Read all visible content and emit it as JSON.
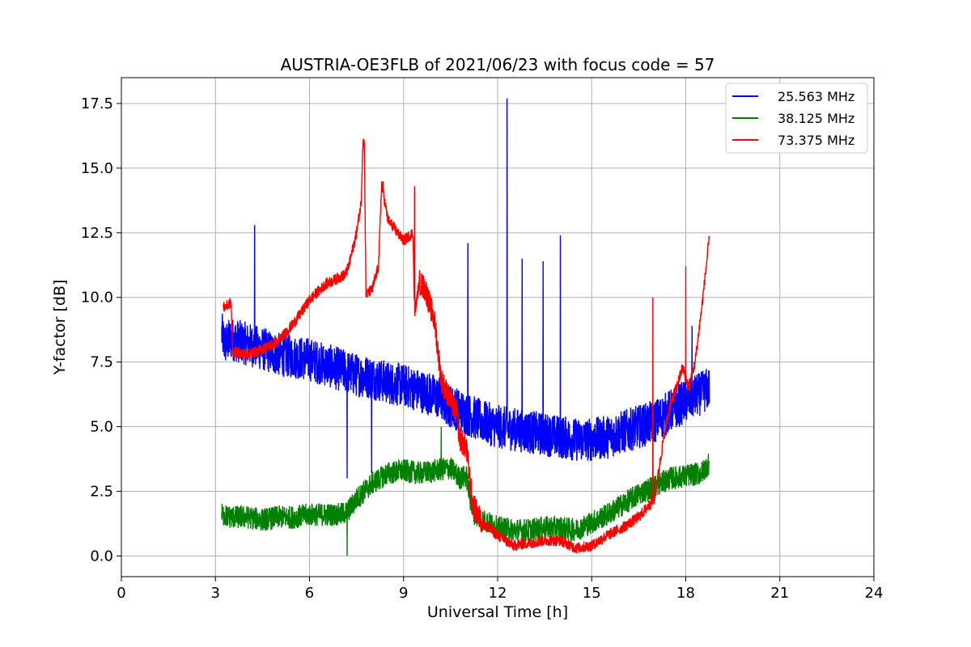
{
  "chart_data": {
    "type": "line",
    "title": "AUSTRIA-OE3FLB of 2021/06/23 with focus code = 57",
    "xlabel": "Universal Time [h]",
    "ylabel": "Y-factor [dB]",
    "xlim": [
      0,
      24
    ],
    "ylim": [
      -0.8,
      18.5
    ],
    "xticks": [
      0,
      3,
      6,
      9,
      12,
      15,
      18,
      21,
      24
    ],
    "xtick_labels": [
      "0",
      "3",
      "6",
      "9",
      "12",
      "15",
      "18",
      "21",
      "24"
    ],
    "yticks": [
      0,
      2.5,
      5,
      7.5,
      10,
      12.5,
      15,
      17.5
    ],
    "ytick_labels": [
      "0.0",
      "2.5",
      "5.0",
      "7.5",
      "10.0",
      "12.5",
      "15.0",
      "17.5"
    ],
    "grid": true,
    "legend_position": "top-right",
    "series": [
      {
        "name": "25.563 MHz",
        "color": "#0000ff",
        "x": [
          3.2,
          3.3,
          3.5,
          4.0,
          4.5,
          5.0,
          5.5,
          6.0,
          6.5,
          7.0,
          7.5,
          8.0,
          8.5,
          9.0,
          9.5,
          10.0,
          10.5,
          11.0,
          11.5,
          12.0,
          12.5,
          13.0,
          13.5,
          14.0,
          14.5,
          15.0,
          15.5,
          16.0,
          16.5,
          17.0,
          17.5,
          18.0,
          18.5,
          18.75
        ],
        "y": [
          8.6,
          8.2,
          8.4,
          8.2,
          8.0,
          7.8,
          7.7,
          7.6,
          7.4,
          7.2,
          7.0,
          6.9,
          6.7,
          6.6,
          6.4,
          6.2,
          5.8,
          5.5,
          5.2,
          5.0,
          4.9,
          4.8,
          4.7,
          4.6,
          4.5,
          4.5,
          4.6,
          4.8,
          5.0,
          5.2,
          5.6,
          6.0,
          6.3,
          6.5
        ],
        "spikes": [
          {
            "x": 4.25,
            "y": 12.8
          },
          {
            "x": 7.2,
            "y": 3.0
          },
          {
            "x": 7.98,
            "y": 3.2
          },
          {
            "x": 11.05,
            "y": 12.1
          },
          {
            "x": 12.3,
            "y": 17.7
          },
          {
            "x": 12.78,
            "y": 11.5
          },
          {
            "x": 13.45,
            "y": 11.4
          },
          {
            "x": 14.0,
            "y": 12.4
          },
          {
            "x": 18.2,
            "y": 8.9
          }
        ]
      },
      {
        "name": "38.125 MHz",
        "color": "#008000",
        "x": [
          3.2,
          3.5,
          4.0,
          4.5,
          5.0,
          5.5,
          6.0,
          6.5,
          7.0,
          7.2,
          7.5,
          8.0,
          8.5,
          9.0,
          9.5,
          10.0,
          10.5,
          10.8,
          11.0,
          11.2,
          11.5,
          12.0,
          12.5,
          13.0,
          13.5,
          14.0,
          14.5,
          15.0,
          15.5,
          16.0,
          16.5,
          17.0,
          17.5,
          18.0,
          18.5,
          18.75
        ],
        "y": [
          1.6,
          1.5,
          1.5,
          1.4,
          1.5,
          1.5,
          1.6,
          1.6,
          1.6,
          1.7,
          2.2,
          2.8,
          3.2,
          3.3,
          3.2,
          3.3,
          3.4,
          3.0,
          3.1,
          1.7,
          1.4,
          1.1,
          1.0,
          1.0,
          1.1,
          1.1,
          1.0,
          1.3,
          1.6,
          2.0,
          2.4,
          2.7,
          3.0,
          3.1,
          3.2,
          3.6
        ],
        "spikes": [
          {
            "x": 7.2,
            "y": 0.0
          },
          {
            "x": 10.2,
            "y": 5.0
          }
        ]
      },
      {
        "name": "73.375 MHz",
        "color": "#ff0000",
        "x": [
          3.25,
          3.4,
          3.5,
          3.55,
          4.0,
          4.3,
          4.5,
          5.0,
          5.5,
          6.0,
          6.5,
          7.0,
          7.15,
          7.25,
          7.5,
          7.65,
          7.7,
          7.75,
          7.8,
          8.0,
          8.2,
          8.3,
          8.5,
          9.0,
          9.3,
          9.35,
          9.5,
          9.7,
          10.0,
          10.2,
          10.5,
          10.7,
          10.8,
          11.0,
          11.2,
          11.5,
          12.0,
          12.5,
          13.0,
          13.5,
          14.0,
          14.5,
          15.0,
          15.5,
          16.0,
          16.5,
          17.0,
          17.3,
          17.5,
          17.7,
          17.9,
          18.1,
          18.3,
          18.5,
          18.75
        ],
        "y": [
          9.6,
          9.7,
          9.8,
          7.9,
          7.8,
          7.9,
          8.0,
          8.3,
          9.0,
          9.9,
          10.5,
          10.8,
          10.9,
          11.2,
          12.5,
          13.7,
          16.0,
          16.0,
          10.1,
          10.3,
          11.2,
          14.4,
          13.0,
          12.2,
          12.5,
          9.3,
          10.6,
          10.3,
          9.0,
          6.8,
          6.0,
          5.5,
          4.5,
          4.2,
          2.0,
          1.3,
          0.8,
          0.4,
          0.5,
          0.6,
          0.6,
          0.3,
          0.4,
          0.8,
          1.1,
          1.5,
          2.2,
          4.6,
          5.8,
          6.5,
          7.3,
          6.5,
          7.5,
          9.5,
          12.3
        ],
        "spikes": [
          {
            "x": 8.35,
            "y": 14.5
          },
          {
            "x": 9.35,
            "y": 14.3
          },
          {
            "x": 16.95,
            "y": 10.0
          },
          {
            "x": 18.0,
            "y": 11.2
          }
        ]
      }
    ]
  }
}
